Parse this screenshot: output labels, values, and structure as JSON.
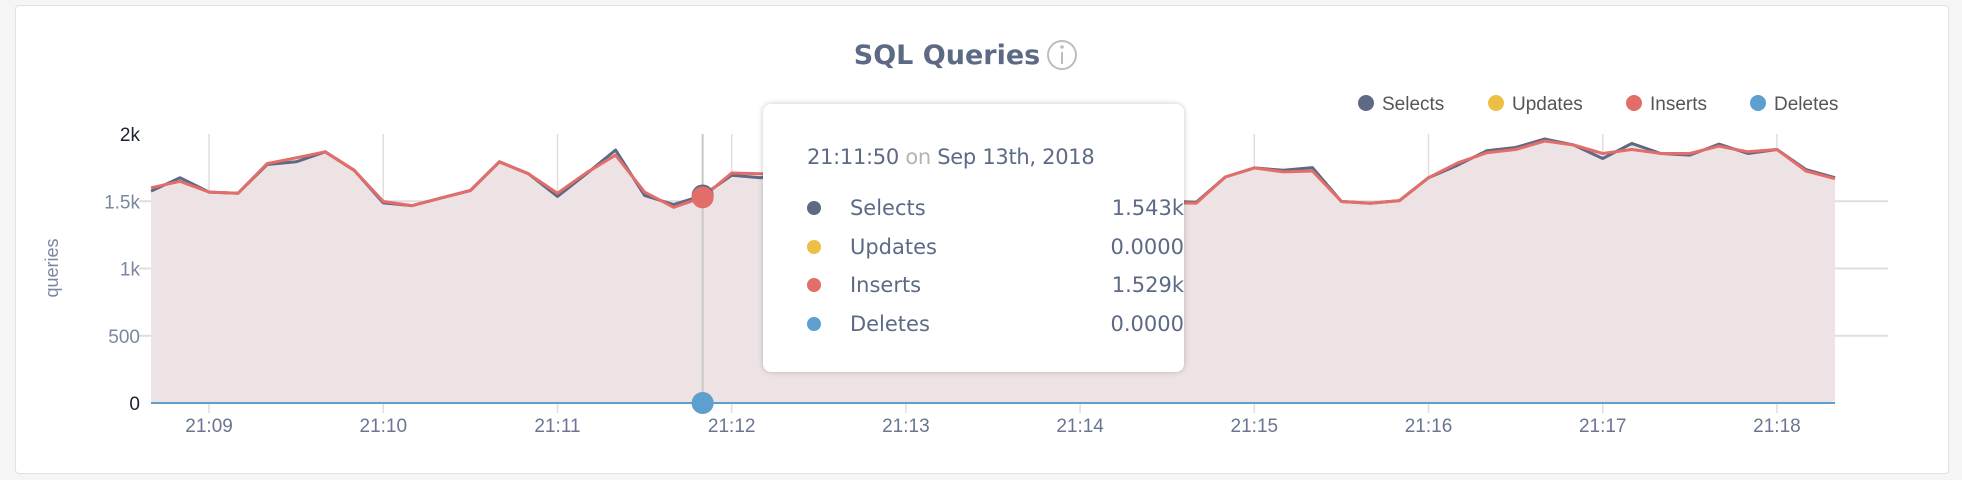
{
  "chart_data": {
    "type": "area",
    "title": "SQL Queries",
    "ylabel": "queries",
    "xlabel": "",
    "ylim": [
      0,
      2000
    ],
    "yticks": [
      "0",
      "500",
      "1k",
      "1.5k",
      "2k"
    ],
    "ytick_values": [
      0,
      500,
      1000,
      1500,
      2000
    ],
    "xticks": [
      "21:09",
      "21:10",
      "21:11",
      "21:12",
      "21:13",
      "21:14",
      "21:15",
      "21:16",
      "21:17",
      "21:18"
    ],
    "grid": true,
    "legend_position": "top-right",
    "x": [
      "21:08:40",
      "21:08:50",
      "21:09:00",
      "21:09:10",
      "21:09:20",
      "21:09:30",
      "21:09:40",
      "21:09:50",
      "21:10:00",
      "21:10:10",
      "21:10:20",
      "21:10:30",
      "21:10:40",
      "21:10:50",
      "21:11:00",
      "21:11:10",
      "21:11:20",
      "21:11:30",
      "21:11:40",
      "21:11:50",
      "21:12:00",
      "21:12:10",
      "21:12:20",
      "21:12:30",
      "21:12:40",
      "21:12:50",
      "21:13:00",
      "21:13:10",
      "21:13:20",
      "21:13:30",
      "21:13:40",
      "21:13:50",
      "21:14:00",
      "21:14:10",
      "21:14:20",
      "21:14:30",
      "21:14:40",
      "21:14:50",
      "21:15:00",
      "21:15:10",
      "21:15:20",
      "21:15:30",
      "21:15:40",
      "21:15:50",
      "21:16:00",
      "21:16:10",
      "21:16:20",
      "21:16:30",
      "21:16:40",
      "21:16:50",
      "21:17:00",
      "21:17:10",
      "21:17:20",
      "21:17:30",
      "21:17:40",
      "21:17:50",
      "21:18:00",
      "21:18:10",
      "21:18:20"
    ],
    "series": [
      {
        "name": "Selects",
        "color": "#5e6985",
        "values": [
          1575,
          1675,
          1568,
          1560,
          1773,
          1793,
          1868,
          1730,
          1488,
          1468,
          1525,
          1580,
          1793,
          1705,
          1535,
          1705,
          1880,
          1543,
          1475,
          1543,
          1693,
          1675,
          1720,
          1600,
          1510,
          1530,
          1620,
          1700,
          1600,
          1690,
          1760,
          1700,
          1720,
          1690,
          1560,
          1500,
          1493,
          1680,
          1748,
          1730,
          1750,
          1498,
          1485,
          1505,
          1675,
          1768,
          1875,
          1900,
          1963,
          1918,
          1818,
          1930,
          1855,
          1843,
          1925,
          1855,
          1885,
          1735,
          1675
        ]
      },
      {
        "name": "Updates",
        "color": "#ecbf47",
        "values": [
          0,
          0,
          0,
          0,
          0,
          0,
          0,
          0,
          0,
          0,
          0,
          0,
          0,
          0,
          0,
          0,
          0,
          0,
          0,
          0,
          0,
          0,
          0,
          0,
          0,
          0,
          0,
          0,
          0,
          0,
          0,
          0,
          0,
          0,
          0,
          0,
          0,
          0,
          0,
          0,
          0,
          0,
          0,
          0,
          0,
          0,
          0,
          0,
          0,
          0,
          0,
          0,
          0,
          0,
          0,
          0,
          0,
          0,
          0
        ]
      },
      {
        "name": "Inserts",
        "color": "#e26d69",
        "values": [
          1600,
          1648,
          1568,
          1560,
          1780,
          1823,
          1868,
          1730,
          1498,
          1468,
          1525,
          1580,
          1793,
          1705,
          1560,
          1712,
          1843,
          1568,
          1455,
          1529,
          1710,
          1705,
          1710,
          1590,
          1500,
          1520,
          1610,
          1690,
          1590,
          1680,
          1750,
          1690,
          1710,
          1680,
          1550,
          1490,
          1485,
          1680,
          1748,
          1718,
          1725,
          1498,
          1485,
          1505,
          1675,
          1785,
          1860,
          1885,
          1948,
          1918,
          1855,
          1885,
          1855,
          1855,
          1910,
          1868,
          1885,
          1725,
          1668
        ]
      },
      {
        "name": "Deletes",
        "color": "#5d9fce",
        "values": [
          0,
          0,
          0,
          0,
          0,
          0,
          0,
          0,
          0,
          0,
          0,
          0,
          0,
          0,
          0,
          0,
          0,
          0,
          0,
          0,
          0,
          0,
          0,
          0,
          0,
          0,
          0,
          0,
          0,
          0,
          0,
          0,
          0,
          0,
          0,
          0,
          0,
          0,
          0,
          0,
          0,
          0,
          0,
          0,
          0,
          0,
          0,
          0,
          0,
          0,
          0,
          0,
          0,
          0,
          0,
          0,
          0,
          0,
          0
        ]
      }
    ],
    "area_fill": "#ede3e5",
    "hover": {
      "x": "21:11:50",
      "title_time": "21:11:50",
      "title_on": "on",
      "title_date": "Sep 13th, 2018",
      "rows": [
        {
          "label": "Selects",
          "value": "1.543k",
          "color": "#5e6985"
        },
        {
          "label": "Updates",
          "value": "0.0000",
          "color": "#ecbf47"
        },
        {
          "label": "Inserts",
          "value": "1.529k",
          "color": "#e26d69"
        },
        {
          "label": "Deletes",
          "value": "0.0000",
          "color": "#5d9fce"
        }
      ]
    }
  },
  "info_icon": "info-circle-icon"
}
